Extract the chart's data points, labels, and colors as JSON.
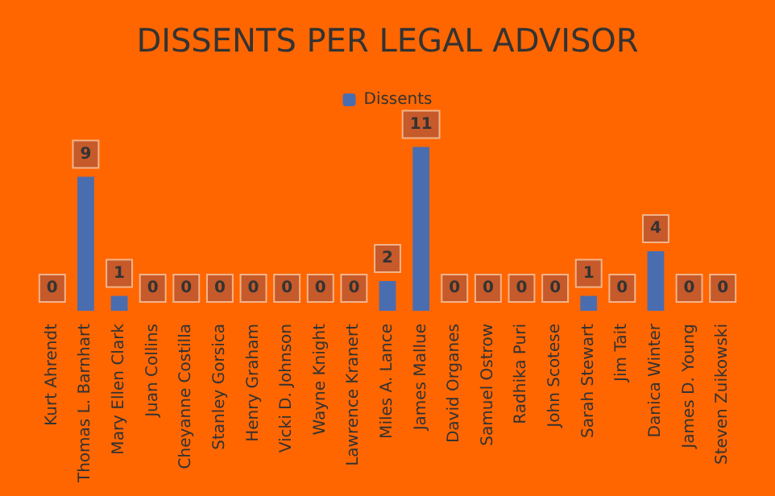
{
  "chart_data": {
    "type": "bar",
    "title": "DISSENTS PER LEGAL ADVISOR",
    "categories": [
      "Kurt Ahrendt",
      "Thomas L. Barnhart",
      "Mary Ellen Clark",
      "Juan Collins",
      "Cheyanne Costilla",
      "Stanley Gorsica",
      "Henry Graham",
      "Vicki D. Johnson",
      "Wayne Knight",
      "Lawrence Kranert",
      "Miles A. Lance",
      "James Mallue",
      "David Organes",
      "Samuel Ostrow",
      "Radhika Puri",
      "John Scotese",
      "Sarah Stewart",
      "Jim Tait",
      "Danica Winter",
      "James D. Young",
      "Steven Zuikowski"
    ],
    "series": [
      {
        "name": "Dissents",
        "color": "#4a6db0",
        "values": [
          0,
          9,
          1,
          0,
          0,
          0,
          0,
          0,
          0,
          0,
          2,
          11,
          0,
          0,
          0,
          0,
          1,
          0,
          4,
          0,
          0
        ]
      }
    ],
    "data_labels": true,
    "legend": "top"
  }
}
